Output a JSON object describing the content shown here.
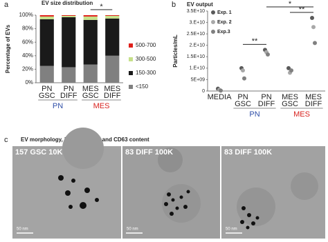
{
  "panel_labels": [
    "a",
    "b",
    "c"
  ],
  "chart_data": [
    {
      "type": "stacked-bar",
      "title": "EV size distribution",
      "y_label": "Percentage of EVs",
      "categories": [
        "PN GSC",
        "PN DIFF",
        "MES GSC",
        "MES DIFF"
      ],
      "groups": [
        {
          "name": "PN",
          "color": "#2f4fa8",
          "categories": [
            "PN GSC",
            "PN DIFF"
          ]
        },
        {
          "name": "MES",
          "color": "#d8231f",
          "categories": [
            "MES GSC",
            "MES DIFF"
          ]
        }
      ],
      "series": [
        {
          "name": "<150",
          "color": "#808080",
          "values": [
            25,
            23,
            27,
            40
          ]
        },
        {
          "name": "150-300",
          "color": "#1a1a1a",
          "values": [
            69,
            74,
            66,
            55
          ]
        },
        {
          "name": "300-500",
          "color": "#c6e08a",
          "values": [
            4,
            2,
            5,
            4
          ]
        },
        {
          "name": "500-700",
          "color": "#e0201b",
          "values": [
            2,
            1,
            2,
            1
          ]
        }
      ],
      "ylim": [
        0,
        100
      ],
      "yticks": [
        {
          "value": 0,
          "label": "0%"
        },
        {
          "value": 20,
          "label": "20%"
        },
        {
          "value": 40,
          "label": "40%"
        },
        {
          "value": 60,
          "label": "60%"
        },
        {
          "value": 80,
          "label": "80%"
        },
        {
          "value": 100,
          "label": "100%"
        }
      ],
      "annotations": [
        {
          "text": "*",
          "between": [
            "MES GSC",
            "MES DIFF"
          ]
        }
      ]
    },
    {
      "type": "scatter",
      "title": "EV output",
      "y_label": "Particles/mL",
      "categories": [
        "MEDIA",
        "PN GSC",
        "PN DIFF",
        "MES GSC",
        "MES DIFF"
      ],
      "groups": [
        {
          "name": "PN",
          "color": "#2f4fa8",
          "categories": [
            "PN GSC",
            "PN DIFF"
          ]
        },
        {
          "name": "MES",
          "color": "#d8231f",
          "categories": [
            "MES GSC",
            "MES DIFF"
          ]
        }
      ],
      "series": [
        {
          "name": "Exp. 1",
          "color": "#5a5a5a",
          "values": [
            1000000000,
            10000000000,
            18000000000,
            10000000000,
            32000000000
          ]
        },
        {
          "name": "Exp. 2",
          "color": "#a8a8a8",
          "values": [
            500000000,
            9000000000,
            17000000000,
            8000000000,
            28000000000
          ]
        },
        {
          "name": "Exp.3",
          "color": "#808080",
          "values": [
            200000000,
            5500000000,
            16000000000,
            9000000000,
            21000000000
          ]
        }
      ],
      "ylim": [
        0,
        35000000000
      ],
      "yticks": [
        0,
        {
          "value": 5000000000,
          "label": "5E+09"
        },
        {
          "value": 10000000000,
          "label": "1.E+10"
        },
        {
          "value": 15000000000,
          "label": "1.5E+10"
        },
        {
          "value": 20000000000,
          "label": "2.E+10"
        },
        {
          "value": 25000000000,
          "label": "2.5E+10"
        },
        {
          "value": 30000000000,
          "label": "3.E+10"
        },
        {
          "value": 35000000000,
          "label": "3.5E+10"
        }
      ],
      "annotations": [
        {
          "text": "**",
          "between": [
            "PN GSC",
            "PN DIFF"
          ]
        },
        {
          "text": "**",
          "between": [
            "MES GSC",
            "MES DIFF"
          ]
        },
        {
          "text": "*",
          "between": [
            "PN DIFF",
            "MES DIFF"
          ]
        }
      ]
    }
  ],
  "micrographs": {
    "title": "EV morphology, heterogeneity and CD63 content",
    "images": [
      {
        "label": "157 GSC 10K",
        "scale": "50 nm"
      },
      {
        "label": "83 DIFF 100K",
        "scale": "50 nm"
      },
      {
        "label": "83 DIFF 100K",
        "scale": "50 nm"
      }
    ]
  }
}
